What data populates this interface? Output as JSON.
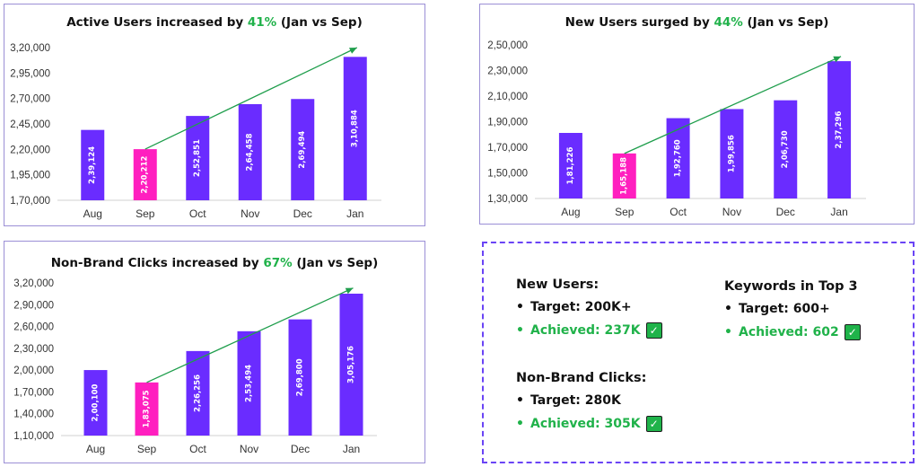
{
  "colors": {
    "bar": "#6a2cff",
    "highlight_bar": "#ff1fbf",
    "trend_arrow": "#1f9e4c",
    "accent_green": "#20b24a",
    "panel_border": "#9b8fd6",
    "dashed_border": "#6a44f5"
  },
  "chart_data": [
    {
      "type": "bar",
      "title_prefix": "Active Users increased by ",
      "title_highlight": "41%",
      "title_suffix": " (Jan vs Sep)",
      "categories": [
        "Aug",
        "Sep",
        "Oct",
        "Nov",
        "Dec",
        "Jan"
      ],
      "values": [
        239124,
        220212,
        252851,
        264458,
        269494,
        310884
      ],
      "value_labels": [
        "2,39,124",
        "2,20,212",
        "2,52,851",
        "2,64,458",
        "2,69,494",
        "3,10,884"
      ],
      "highlight_category": "Sep",
      "ylim": [
        170000,
        320000
      ],
      "yticks": [
        170000,
        195000,
        220000,
        245000,
        270000,
        295000,
        320000
      ],
      "ytick_labels": [
        "1,70,000",
        "1,95,000",
        "2,20,000",
        "2,45,000",
        "2,70,000",
        "2,95,000",
        "3,20,000"
      ],
      "trend_arrow": {
        "from": "Sep",
        "to": "Jan",
        "start_value": 220212,
        "end_value": 320000
      },
      "grid": false
    },
    {
      "type": "bar",
      "title_prefix": "New Users surged by ",
      "title_highlight": "44%",
      "title_suffix": " (Jan vs Sep)",
      "categories": [
        "Aug",
        "Sep",
        "Oct",
        "Nov",
        "Dec",
        "Jan"
      ],
      "values": [
        181226,
        165188,
        192760,
        199856,
        206730,
        237296
      ],
      "value_labels": [
        "1,81,226",
        "1,65,188",
        "1,92,760",
        "1,99,856",
        "2,06,730",
        "2,37,296"
      ],
      "highlight_category": "Sep",
      "ylim": [
        130000,
        250000
      ],
      "yticks": [
        130000,
        150000,
        170000,
        190000,
        210000,
        230000,
        250000
      ],
      "ytick_labels": [
        "1,30,000",
        "1,50,000",
        "1,70,000",
        "1,90,000",
        "2,10,000",
        "2,30,000",
        "2,50,000"
      ],
      "trend_arrow": {
        "from": "Sep",
        "to": "Jan",
        "start_value": 165188,
        "end_value": 241000
      },
      "grid": false
    },
    {
      "type": "bar",
      "title_prefix": "Non-Brand Clicks increased by ",
      "title_highlight": "67%",
      "title_suffix": " (Jan vs Sep)",
      "categories": [
        "Aug",
        "Sep",
        "Oct",
        "Nov",
        "Dec",
        "Jan"
      ],
      "values": [
        200100,
        183075,
        226256,
        253494,
        269800,
        305176
      ],
      "value_labels": [
        "2,00,100",
        "1,83,075",
        "2,26,256",
        "2,53,494",
        "2,69,800",
        "3,05,176"
      ],
      "highlight_category": "Sep",
      "ylim": [
        110000,
        320000
      ],
      "yticks": [
        110000,
        140000,
        170000,
        200000,
        230000,
        260000,
        290000,
        320000
      ],
      "ytick_labels": [
        "1,10,000",
        "1,40,000",
        "1,70,000",
        "2,00,000",
        "2,30,000",
        "2,60,000",
        "2,90,000",
        "3,20,000"
      ],
      "trend_arrow": {
        "from": "Sep",
        "to": "Jan",
        "start_value": 183075,
        "end_value": 313000
      },
      "grid": false
    }
  ],
  "summary": {
    "new_users": {
      "heading": "New Users:",
      "target": "Target: 200K+",
      "achieved": "Achieved: 237K"
    },
    "keywords": {
      "heading": "Keywords in Top 3",
      "target": "Target: 600+",
      "achieved": "Achieved: 602"
    },
    "non_brand": {
      "heading": "Non-Brand Clicks:",
      "target": "Target: 280K",
      "achieved": "Achieved: 305K"
    },
    "bullet": "•",
    "check": "✓"
  }
}
